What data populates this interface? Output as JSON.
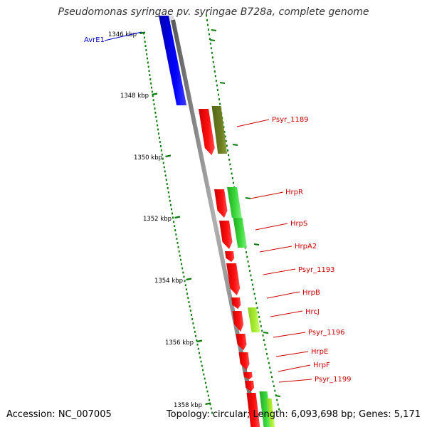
{
  "title": "Pseudomonas syringae pv. syringae B728a, complete genome",
  "accession": "Accession: NC_007005",
  "topology": "Topology: circular; Length: 6,093,698 bp; Genes: 5,171",
  "scale_ticks": [
    {
      "label": "1346 kbp"
    },
    {
      "label": "1348 kbp"
    },
    {
      "label": "1350 kbp"
    },
    {
      "label": "1352 kbp"
    },
    {
      "label": "1354 kbp"
    },
    {
      "label": "1356 kbp"
    },
    {
      "label": "1358 kbp"
    }
  ],
  "genes": [
    {
      "name": "AvrE1",
      "color": "#0000cc"
    },
    {
      "name": "Psyr_1189",
      "color": "#cc0000"
    },
    {
      "name": "HrpR",
      "color": "#cc0000"
    },
    {
      "name": "HrpS",
      "color": "#cc0000"
    },
    {
      "name": "HrpA2",
      "color": "#cc0000"
    },
    {
      "name": "Psyr_1193",
      "color": "#cc0000"
    },
    {
      "name": "HrpB",
      "color": "#cc0000"
    },
    {
      "name": "HrcJ",
      "color": "#cc0000"
    },
    {
      "name": "Psyr_1196",
      "color": "#cc0000"
    },
    {
      "name": "HrpE",
      "color": "#cc0000"
    },
    {
      "name": "HrpF",
      "color": "#cc0000"
    },
    {
      "name": "Psyr_1199",
      "color": "#cc0000"
    }
  ],
  "colors": {
    "backbone": "#808080",
    "forward_cds": "#ff0000",
    "reverse_cds_dark": "#6b7d1f",
    "reverse_cds_green": "#3fcc3f",
    "reverse_cds_lime": "#aaee33",
    "avr_gene": "#0000ff",
    "scale_tick": "#0a7a0a",
    "label_line": "#cc0000"
  }
}
